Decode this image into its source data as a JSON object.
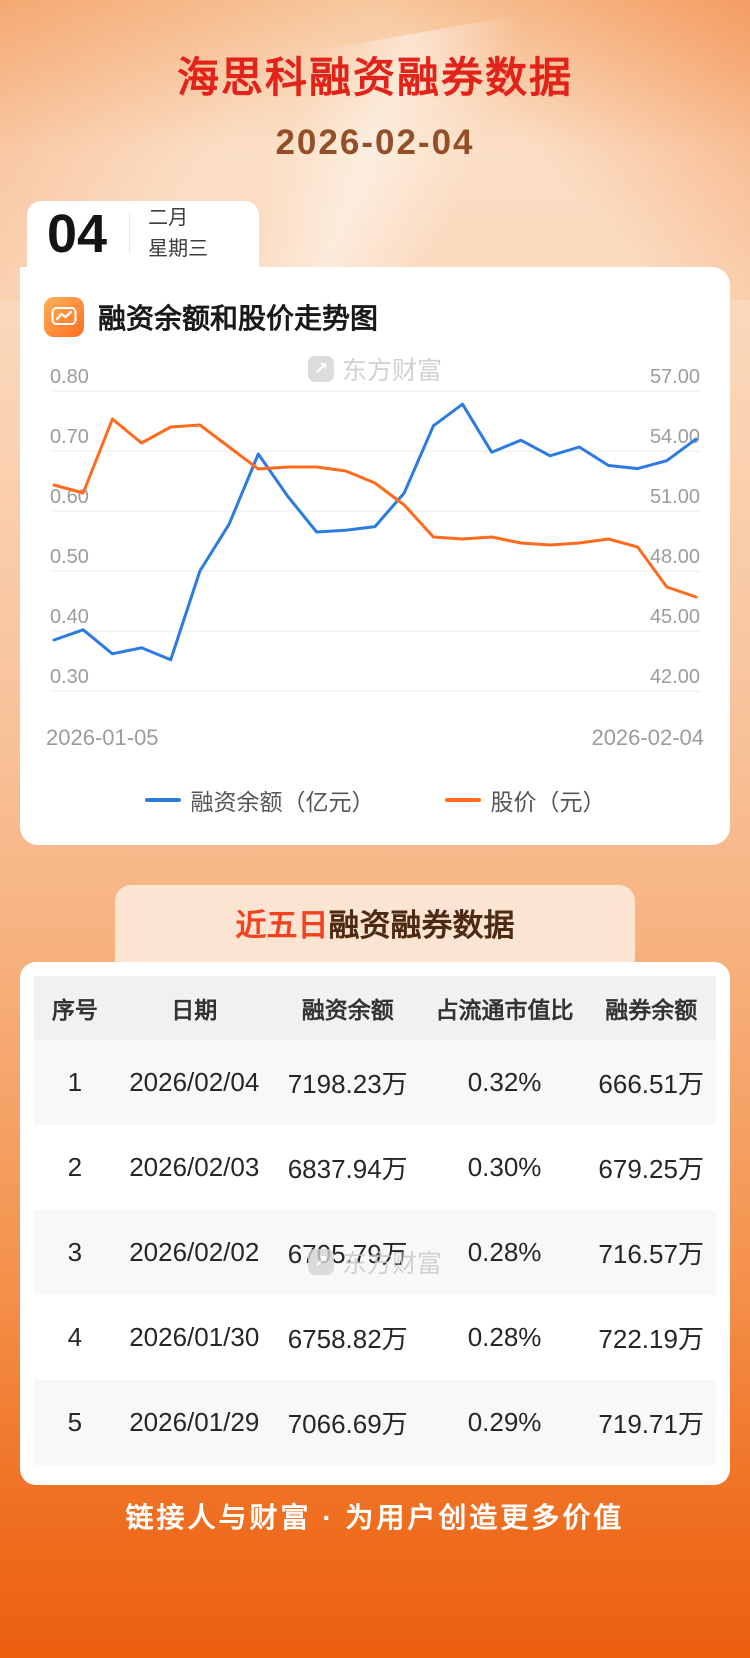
{
  "page": {
    "title": "海思科融资融券数据",
    "date": "2026-02-04"
  },
  "colors": {
    "title_red": "#e2231a",
    "date_brown": "#944f28",
    "line_blue": "#2c7bdf",
    "line_orange": "#ff6a1e",
    "band_bg": "#fbe4d2",
    "band_highlight": "#f3401f",
    "footer_text": "#ffffff"
  },
  "date_card": {
    "day": "04",
    "month": "二月",
    "weekday": "星期三"
  },
  "chart_section": {
    "title": "融资余额和股价走势图",
    "watermark": "东方财富",
    "legend": [
      {
        "label": "融资余额（亿元）",
        "color": "#2c7bdf"
      },
      {
        "label": "股价（元）",
        "color": "#ff6a1e"
      }
    ]
  },
  "chart_data": {
    "type": "line",
    "x_start_label": "2026-01-05",
    "x_end_label": "2026-02-04",
    "left_axis": {
      "min": 0.3,
      "max": 0.8,
      "ticks": [
        "0.80",
        "0.70",
        "0.60",
        "0.50",
        "0.40",
        "0.30"
      ]
    },
    "right_axis": {
      "min": 42.0,
      "max": 57.0,
      "ticks": [
        "57.00",
        "54.00",
        "51.00",
        "48.00",
        "45.00",
        "42.00"
      ]
    },
    "grid": true,
    "legend_position": "bottom",
    "series": [
      {
        "name": "融资余额（亿元）",
        "axis": "left",
        "color": "#2c7bdf",
        "values": [
          0.385,
          0.402,
          0.362,
          0.372,
          0.352,
          0.5,
          0.578,
          0.695,
          0.625,
          0.565,
          0.568,
          0.574,
          0.63,
          0.742,
          0.778,
          0.698,
          0.718,
          0.692,
          0.7067,
          0.6759,
          0.6706,
          0.6838,
          0.7198
        ]
      },
      {
        "name": "股价（元）",
        "axis": "right",
        "color": "#ff6a1e",
        "values": [
          52.3,
          51.9,
          55.6,
          54.4,
          55.2,
          55.3,
          54.2,
          53.1,
          53.2,
          53.2,
          53.0,
          52.4,
          51.3,
          49.7,
          49.6,
          49.7,
          49.4,
          49.3,
          49.4,
          49.6,
          49.2,
          47.2,
          46.7
        ]
      }
    ]
  },
  "table_section": {
    "title_highlight": "近五日",
    "title_rest": "融资融券数据",
    "watermark": "东方财富",
    "columns": [
      "序号",
      "日期",
      "融资余额",
      "占流通市值比",
      "融券余额"
    ],
    "rows": [
      [
        "1",
        "2026/02/04",
        "7198.23万",
        "0.32%",
        "666.51万"
      ],
      [
        "2",
        "2026/02/03",
        "6837.94万",
        "0.30%",
        "679.25万"
      ],
      [
        "3",
        "2026/02/02",
        "6705.79万",
        "0.28%",
        "716.57万"
      ],
      [
        "4",
        "2026/01/30",
        "6758.82万",
        "0.28%",
        "722.19万"
      ],
      [
        "5",
        "2026/01/29",
        "7066.69万",
        "0.29%",
        "719.71万"
      ]
    ]
  },
  "footer": {
    "slogan": "链接人与财富 · 为用户创造更多价值"
  }
}
